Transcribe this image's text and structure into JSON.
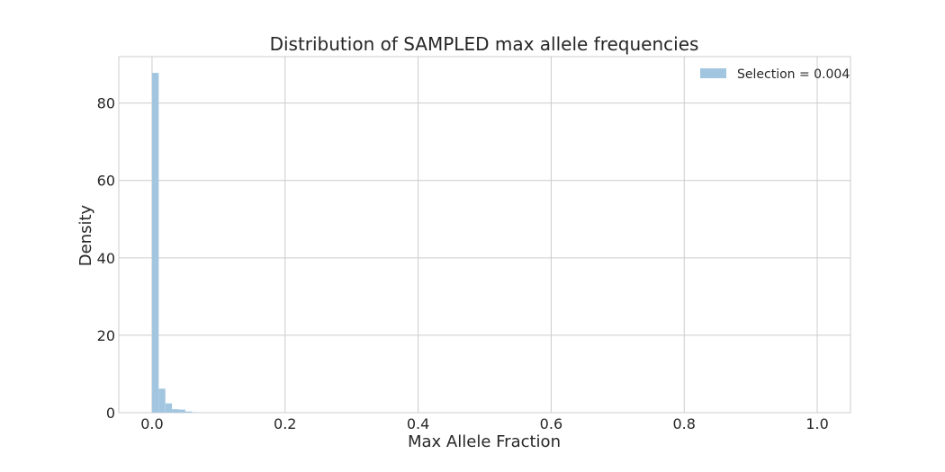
{
  "chart_data": {
    "type": "bar",
    "title": "Distribution of SAMPLED max allele frequencies",
    "xlabel": "Max Allele Fraction",
    "ylabel": "Density",
    "xlim": [
      -0.05,
      1.05
    ],
    "ylim": [
      0,
      92
    ],
    "xticks": [
      0.0,
      0.2,
      0.4,
      0.6,
      0.8,
      1.0
    ],
    "xtick_labels": [
      "0.0",
      "0.2",
      "0.4",
      "0.6",
      "0.8",
      "1.0"
    ],
    "yticks": [
      0,
      20,
      40,
      60,
      80
    ],
    "ytick_labels": [
      "0",
      "20",
      "40",
      "60",
      "80"
    ],
    "grid": true,
    "legend_position": "top-right",
    "bin_width": 0.01,
    "series": [
      {
        "name": "Selection = 0.004",
        "color": "#a3c6e0",
        "bins": [
          {
            "x0": 0.0,
            "x1": 0.01,
            "value": 87.8
          },
          {
            "x0": 0.01,
            "x1": 0.02,
            "value": 6.2
          },
          {
            "x0": 0.02,
            "x1": 0.03,
            "value": 2.4
          },
          {
            "x0": 0.03,
            "x1": 0.04,
            "value": 0.9
          },
          {
            "x0": 0.04,
            "x1": 0.05,
            "value": 0.8
          },
          {
            "x0": 0.05,
            "x1": 0.06,
            "value": 0.3
          },
          {
            "x0": 0.06,
            "x1": 0.07,
            "value": 0.1
          }
        ]
      }
    ]
  }
}
